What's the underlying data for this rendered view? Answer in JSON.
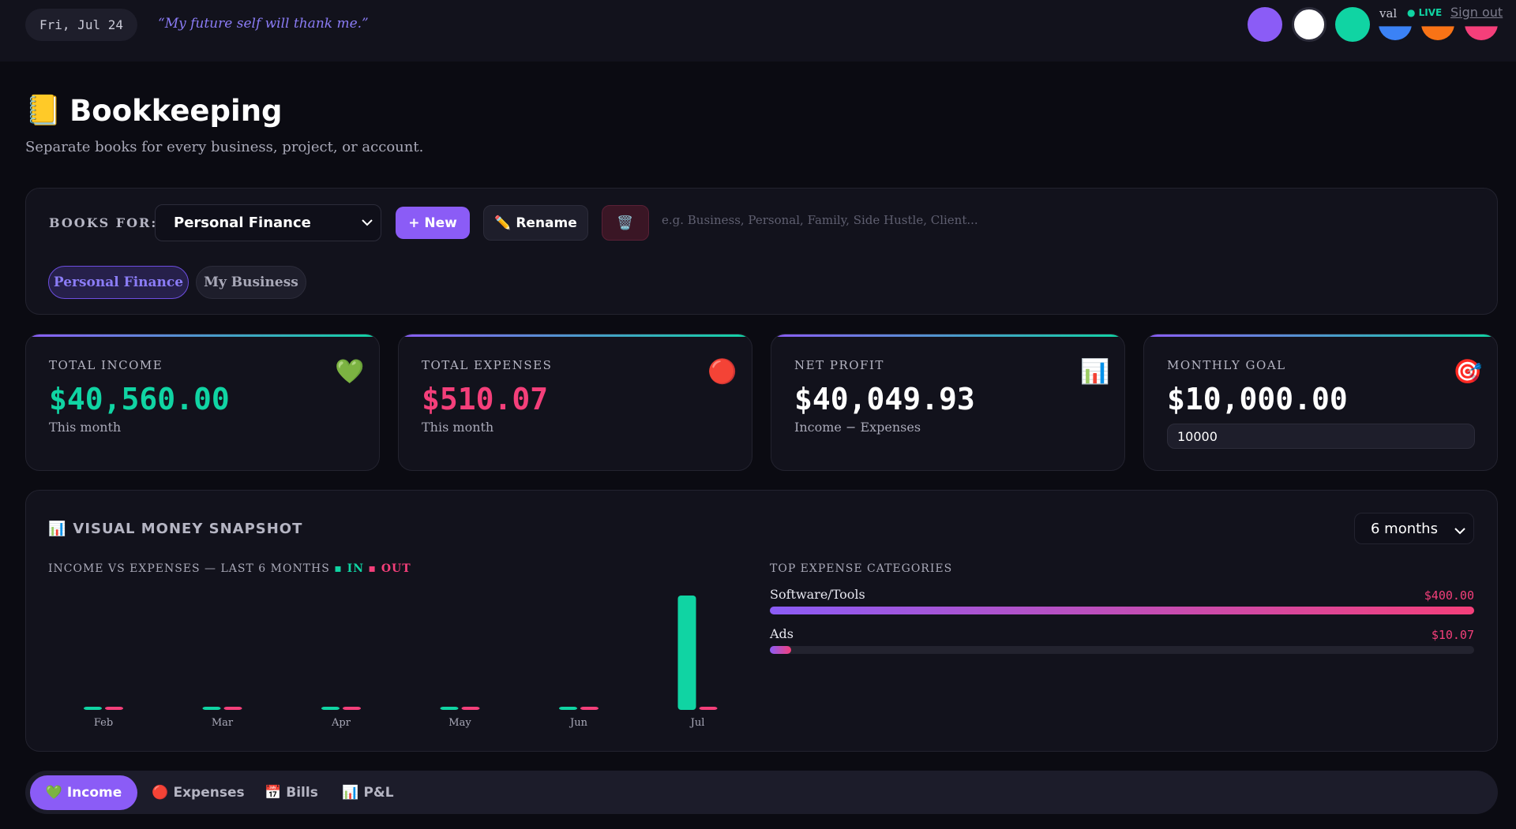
{
  "topbar": {
    "date": "Fri, Jul 24",
    "quote": "“My future self will thank me.”",
    "color_dots": [
      "#8b5cf6",
      "#ffffff",
      "#10d4a3",
      "#3b82f6",
      "#f97316",
      "#f43f7a"
    ],
    "user": "val",
    "live": "● LIVE",
    "signout": "Sign out"
  },
  "header": {
    "icon": "📒",
    "title": "Bookkeeping",
    "subtitle": "Separate books for every business, project, or account."
  },
  "books": {
    "label": "BOOKS FOR:",
    "selected": "Personal Finance",
    "new_label": "+ New",
    "rename_label": "✏️ Rename",
    "delete_icon": "🗑️",
    "input_placeholder": "e.g. Business, Personal, Family, Side Hustle, Client...",
    "pills": [
      "Personal Finance",
      "My Business"
    ]
  },
  "stats": {
    "income": {
      "label": "TOTAL INCOME",
      "value": "$40,560.00",
      "sub": "This month",
      "icon": "💚",
      "color": "#10d4a3"
    },
    "expenses": {
      "label": "TOTAL EXPENSES",
      "value": "$510.07",
      "sub": "This month",
      "icon": "🔴",
      "color": "#f43f7a"
    },
    "net": {
      "label": "NET PROFIT",
      "value": "$40,049.93",
      "sub": "Income − Expenses",
      "icon": "📊",
      "color": "#ffffff"
    },
    "goal": {
      "label": "MONTHLY GOAL",
      "value": "$10,000.00",
      "input_value": "10000",
      "icon": "🎯",
      "color": "#ffffff"
    }
  },
  "snapshot": {
    "title": "VISUAL MONEY SNAPSHOT",
    "icon": "📊",
    "range": "6 months",
    "chart_title": "INCOME VS EXPENSES — LAST 6 MONTHS",
    "legend_in": "▪ IN",
    "legend_out": "▪ OUT",
    "categories_title": "TOP EXPENSE CATEGORIES"
  },
  "chart_data": {
    "type": "bar",
    "categories": [
      "Feb",
      "Mar",
      "Apr",
      "May",
      "Jun",
      "Jul"
    ],
    "series": [
      {
        "name": "IN",
        "values": [
          0,
          0,
          0,
          0,
          0,
          40560.0
        ],
        "color": "#10d4a3"
      },
      {
        "name": "OUT",
        "values": [
          0,
          0,
          0,
          0,
          0,
          510.07
        ],
        "color": "#f43f7a"
      }
    ],
    "title": "INCOME VS EXPENSES — LAST 6 MONTHS",
    "xlabel": "",
    "ylabel": ""
  },
  "expense_categories": [
    {
      "name": "Software/Tools",
      "amount": "$400.00",
      "value": 400.0,
      "fraction": 1.0
    },
    {
      "name": "Ads",
      "amount": "$10.07",
      "value": 10.07,
      "fraction": 0.03
    }
  ],
  "tabs": [
    {
      "label": "💚 Income",
      "active": true
    },
    {
      "label": "🔴 Expenses",
      "active": false
    },
    {
      "label": "📅 Bills",
      "active": false
    },
    {
      "label": "📊 P&L",
      "active": false
    }
  ]
}
